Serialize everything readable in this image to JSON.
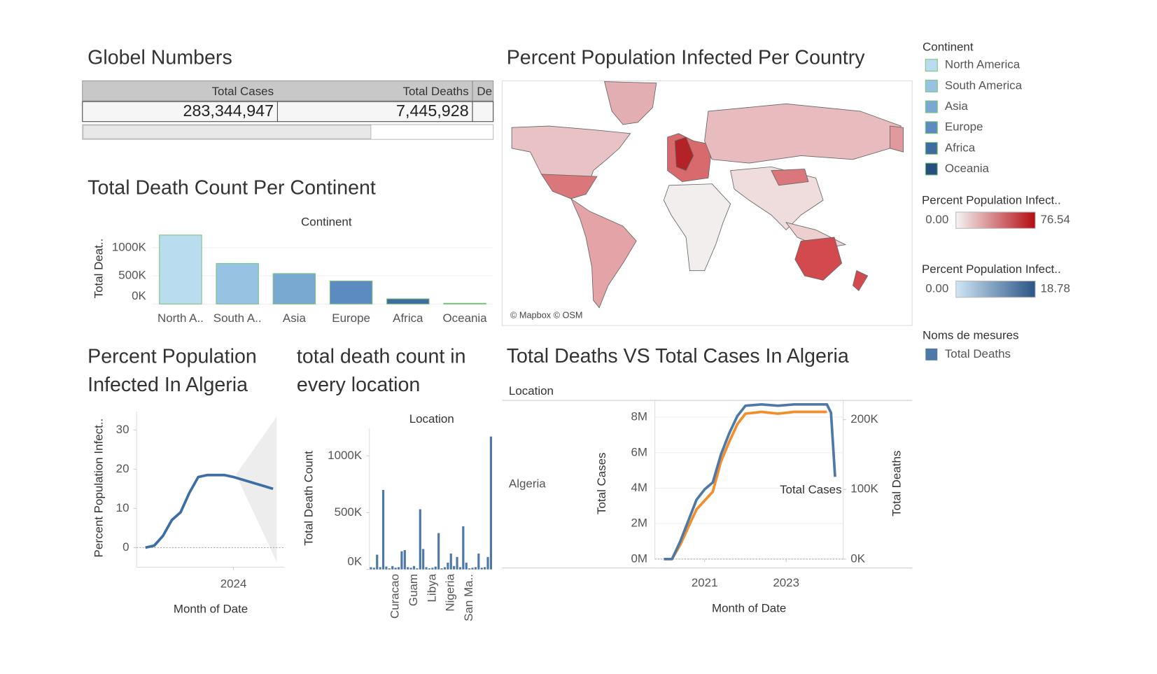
{
  "dashboard": {
    "table": {
      "title": "Globel Numbers",
      "headers": [
        "Total Cases",
        "Total Deaths",
        "De"
      ],
      "row": [
        "283,344,947",
        "7,445,928"
      ]
    },
    "map": {
      "title": "Percent Population Infected Per Country",
      "credit": "© Mapbox © OSM"
    },
    "legends": {
      "continent_title": "Continent",
      "continents": [
        "North America",
        "South America",
        "Asia",
        "Europe",
        "Africa",
        "Oceania"
      ],
      "red": {
        "title": "Percent Population Infect..",
        "range": [
          "0.00",
          "76.54"
        ]
      },
      "blue": {
        "title": "Percent Population Infect..",
        "range": [
          "0.00",
          "18.78"
        ]
      },
      "measures_title": "Noms de mesures"
    }
  },
  "chart_data": [
    {
      "type": "bar",
      "title": "Total Death Count Per Continent",
      "header": "Continent",
      "y_label": "Total Deat..",
      "categories": [
        "North A..",
        "South A..",
        "Asia",
        "Europe",
        "Africa",
        "Oceania"
      ],
      "values": [
        1224000,
        720000,
        540000,
        408000,
        92000,
        13000
      ],
      "colors": [
        "#b9dcef",
        "#97c2e2",
        "#79a8d1",
        "#5b8bc0",
        "#3e6c9f",
        "#25507e"
      ],
      "ylim": [
        0,
        1250000
      ],
      "yticks": [
        {
          "value": 0,
          "label": "0K"
        },
        {
          "value": 500000,
          "label": "500K"
        },
        {
          "value": 1000000,
          "label": "1000K"
        }
      ],
      "grid": true
    },
    {
      "type": "line",
      "title": "Percent Population Infected In Algeria",
      "y_label": "Percent Population Infect..",
      "x_label": "Month of Date",
      "x": [
        2022.0,
        2022.2,
        2022.4,
        2022.6,
        2022.8,
        2023.0,
        2023.2,
        2023.4,
        2023.6,
        2023.8,
        2024.0,
        2024.9
      ],
      "values": [
        0,
        0.5,
        3,
        7,
        9,
        14,
        18,
        18.5,
        18.5,
        18.5,
        18,
        15
      ],
      "color": "#3b6ea5",
      "xlim": [
        2021.8,
        2025.15
      ],
      "xticks": [
        2024
      ],
      "ylim": [
        -5,
        34.7
      ],
      "yticks": [
        0,
        10,
        20,
        30
      ]
    },
    {
      "type": "bar",
      "title": "total death count in every location",
      "header": "Location",
      "y_label": "Total Death Count",
      "categories": [
        null,
        null,
        null,
        null,
        null,
        null,
        null,
        null,
        "Curacao",
        null,
        null,
        null,
        null,
        null,
        "Guam",
        null,
        null,
        null,
        null,
        null,
        "Libya",
        null,
        null,
        null,
        null,
        null,
        "Nigeria",
        null,
        null,
        null,
        null,
        null,
        "San Ma..",
        null,
        null,
        null,
        null,
        null,
        null,
        null
      ],
      "values": [
        20000,
        15000,
        130000,
        20000,
        700000,
        25000,
        10000,
        30000,
        15000,
        20000,
        160000,
        170000,
        20000,
        15000,
        30000,
        10000,
        530000,
        180000,
        20000,
        10000,
        15000,
        25000,
        320000,
        10000,
        20000,
        60000,
        140000,
        30000,
        110000,
        20000,
        380000,
        60000,
        10000,
        15000,
        20000,
        140000,
        15000,
        20000,
        110000,
        1170000
      ],
      "color": "#4e79a7",
      "ylim": [
        0,
        1240000
      ],
      "yticks": [
        {
          "value": 0,
          "label": "0K"
        },
        {
          "value": 500000,
          "label": "500K"
        },
        {
          "value": 1000000,
          "label": "1000K"
        }
      ]
    },
    {
      "type": "dual_line",
      "title": "Total Deaths VS Total Cases In Algeria",
      "row_header": "Location",
      "row": "Algeria",
      "y_label": "Total Cases",
      "y2_label": "Total Deaths",
      "x_label": "Month of Date",
      "x": [
        2020.0,
        2020.2,
        2020.4,
        2020.6,
        2020.8,
        2021.0,
        2021.2,
        2021.4,
        2021.6,
        2021.8,
        2022.0,
        2022.4,
        2022.8,
        2023.2,
        2023.6,
        2024.0,
        2024.1,
        2024.2
      ],
      "series": [
        {
          "name": "Total Cases",
          "color": "#f28e2b",
          "values": [
            0,
            0,
            800000,
            1800000,
            2800000,
            3300000,
            3800000,
            5500000,
            6600000,
            7600000,
            8200000,
            8300000,
            8200000,
            8300000,
            8300000,
            8300000,
            null,
            null
          ]
        },
        {
          "name": "Total Deaths",
          "color": "#4e79a7",
          "axis": "y2",
          "values": [
            0,
            0,
            25000,
            55000,
            85000,
            100000,
            110000,
            150000,
            180000,
            205000,
            220000,
            222000,
            220000,
            222000,
            222000,
            222000,
            210000,
            118000
          ]
        }
      ],
      "xlim": [
        2019.78,
        2024.4
      ],
      "xticks": [
        2021,
        2023
      ],
      "ylim": [
        0,
        8950000
      ],
      "yticks": [
        {
          "value": 0,
          "label": "0M"
        },
        {
          "value": 2000000,
          "label": "2M"
        },
        {
          "value": 4000000,
          "label": "4M"
        },
        {
          "value": 6000000,
          "label": "6M"
        },
        {
          "value": 8000000,
          "label": "8M"
        }
      ],
      "y2lim": [
        0,
        227700
      ],
      "y2ticks": [
        {
          "value": 0,
          "label": "0K"
        },
        {
          "value": 100000,
          "label": "100K"
        },
        {
          "value": 200000,
          "label": "200K"
        }
      ],
      "grid": true
    }
  ]
}
